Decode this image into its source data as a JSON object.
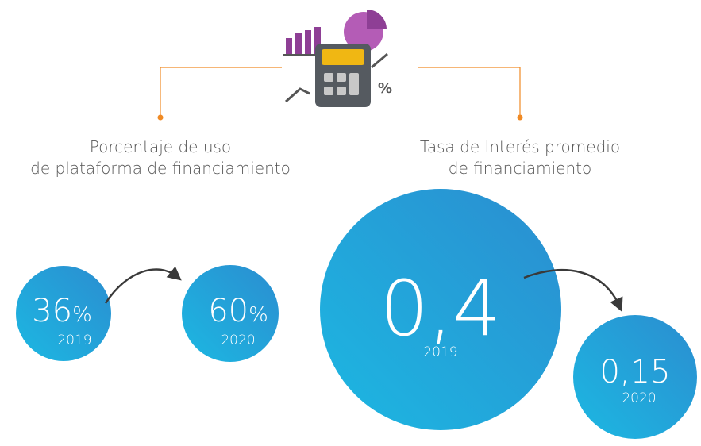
{
  "left": {
    "title_lines": [
      "Porcentaje de uso",
      "de plataforma de financiamiento"
    ],
    "items": [
      {
        "value": "36",
        "unit": "%",
        "year": "2019"
      },
      {
        "value": "60",
        "unit": "%",
        "year": "2020"
      }
    ]
  },
  "right": {
    "title_lines": [
      "Tasa de Interés promedio",
      "de financiamiento"
    ],
    "items": [
      {
        "value": "0,4",
        "year": "2019"
      },
      {
        "value": "0,15",
        "year": "2020"
      }
    ]
  }
}
